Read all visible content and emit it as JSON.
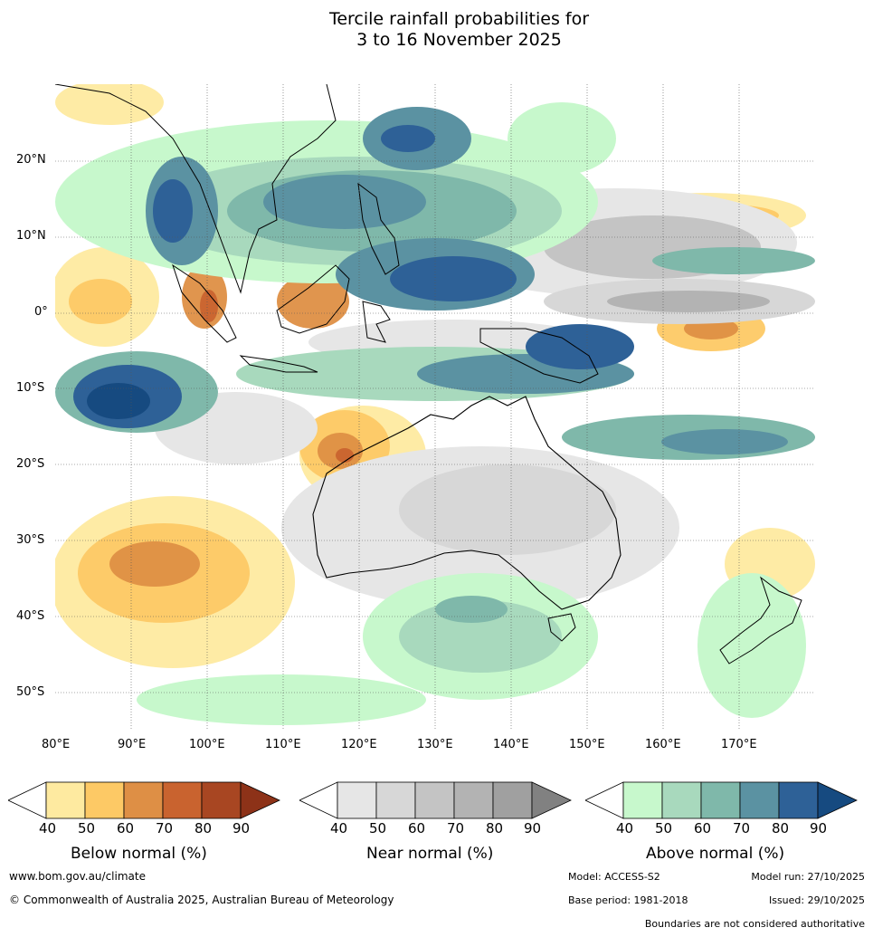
{
  "title": {
    "line1": "Tercile rainfall probabilities for",
    "line2": "3 to 16 November 2025"
  },
  "map": {
    "lat_labels": [
      "20°N",
      "10°N",
      "0°",
      "10°S",
      "20°S",
      "30°S",
      "40°S",
      "50°S"
    ],
    "lon_labels": [
      "80°E",
      "90°E",
      "100°E",
      "110°E",
      "120°E",
      "130°E",
      "140°E",
      "150°E",
      "160°E",
      "170°E"
    ]
  },
  "legends": [
    {
      "title": "Below normal (%)",
      "ticks": [
        "40",
        "50",
        "60",
        "70",
        "80",
        "90"
      ],
      "colors": [
        "#ffffff",
        "#feeaa0",
        "#fdc965",
        "#de8f45",
        "#c9632f",
        "#a84622",
        "#8d3218"
      ]
    },
    {
      "title": "Near normal (%)",
      "ticks": [
        "40",
        "50",
        "60",
        "70",
        "80",
        "90"
      ],
      "colors": [
        "#ffffff",
        "#e6e6e6",
        "#d7d7d7",
        "#c4c4c4",
        "#b3b3b3",
        "#a0a0a0",
        "#818181"
      ]
    },
    {
      "title": "Above normal (%)",
      "ticks": [
        "40",
        "50",
        "60",
        "70",
        "80",
        "90"
      ],
      "colors": [
        "#ffffff",
        "#c7f8cc",
        "#a8d9bd",
        "#7fb8aa",
        "#5b92a2",
        "#2e6197",
        "#164a80"
      ]
    }
  ],
  "footer": {
    "website": "www.bom.gov.au/climate",
    "copyright": "© Commonwealth of Australia 2025, Australian Bureau of Meteorology",
    "model": "Model: ACCESS-S2",
    "model_run": "Model run: 27/10/2025",
    "base_period": "Base period: 1981-2018",
    "issued": "Issued: 29/10/2025",
    "disclaimer": "Boundaries are not considered authoritative"
  }
}
